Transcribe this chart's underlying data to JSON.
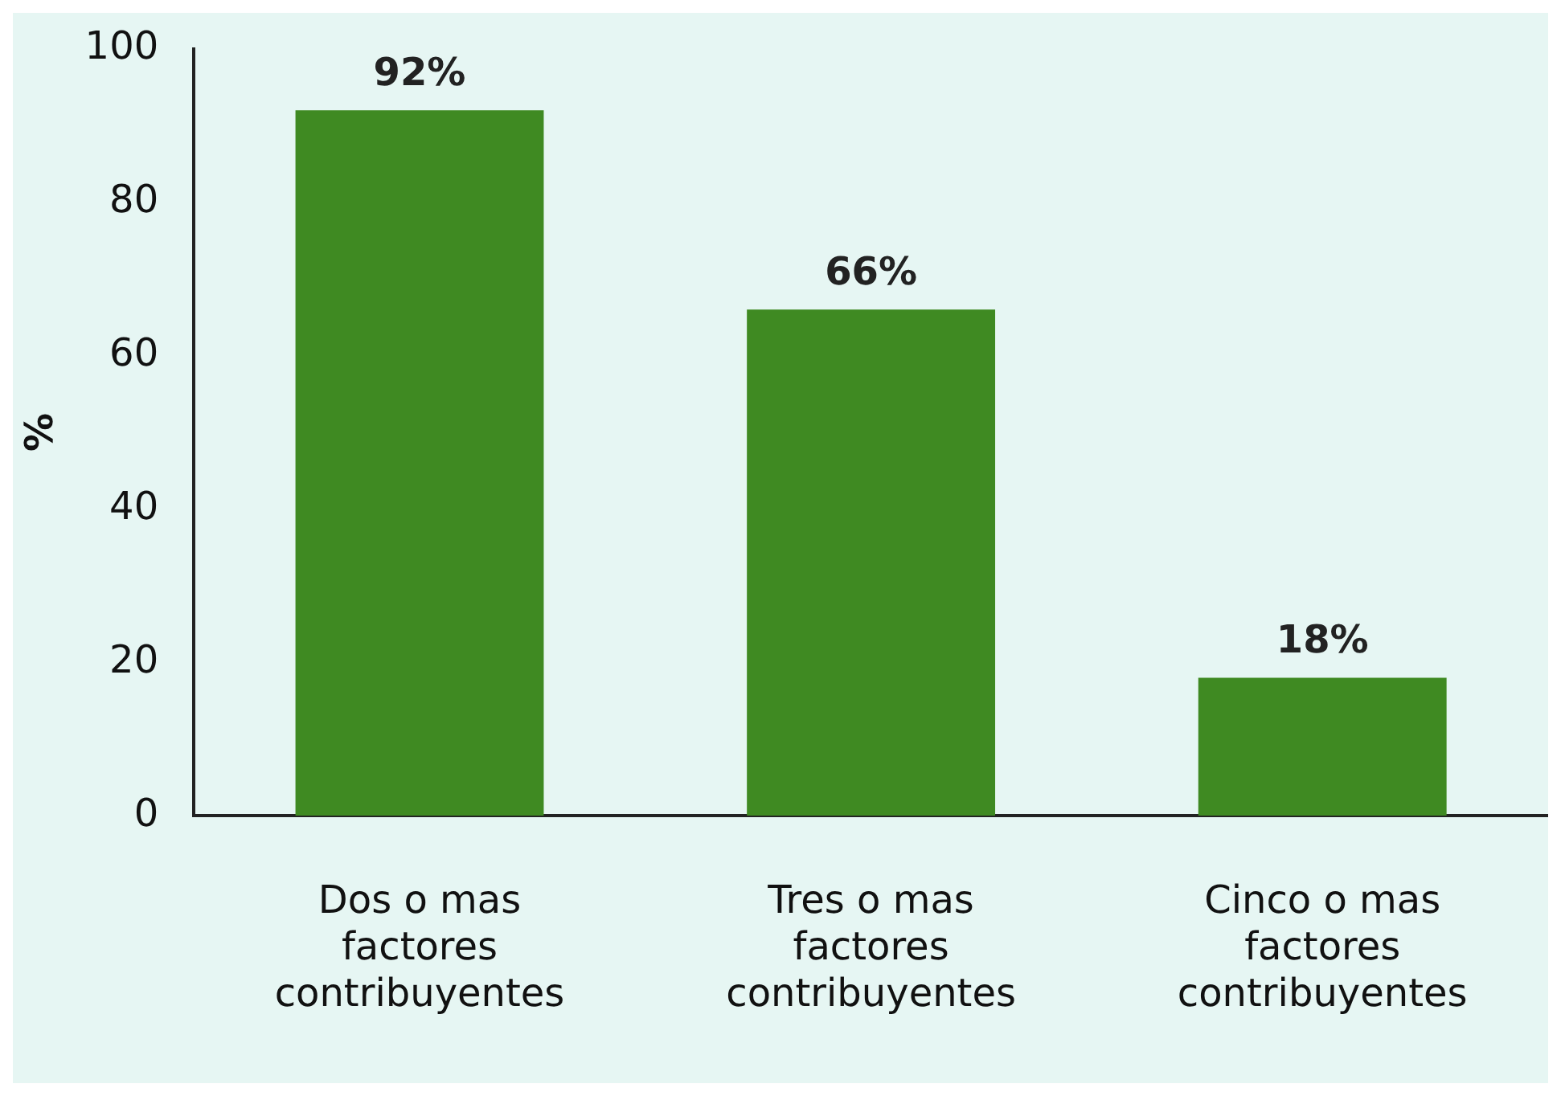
{
  "chart_data": {
    "type": "bar",
    "ylabel": "%",
    "categories": [
      "Dos o mas factores contribuyentes",
      "Tres o mas factores contribuyentes",
      "Cinco o mas factores contribuyentes"
    ],
    "values": [
      92,
      66,
      18
    ],
    "value_labels": [
      "92%",
      "66%",
      "18%"
    ],
    "color": "#3f8a22",
    "ylim": [
      0,
      100
    ],
    "yticks": [
      0,
      20,
      40,
      60,
      80,
      100
    ],
    "grid": false,
    "legend": false
  }
}
